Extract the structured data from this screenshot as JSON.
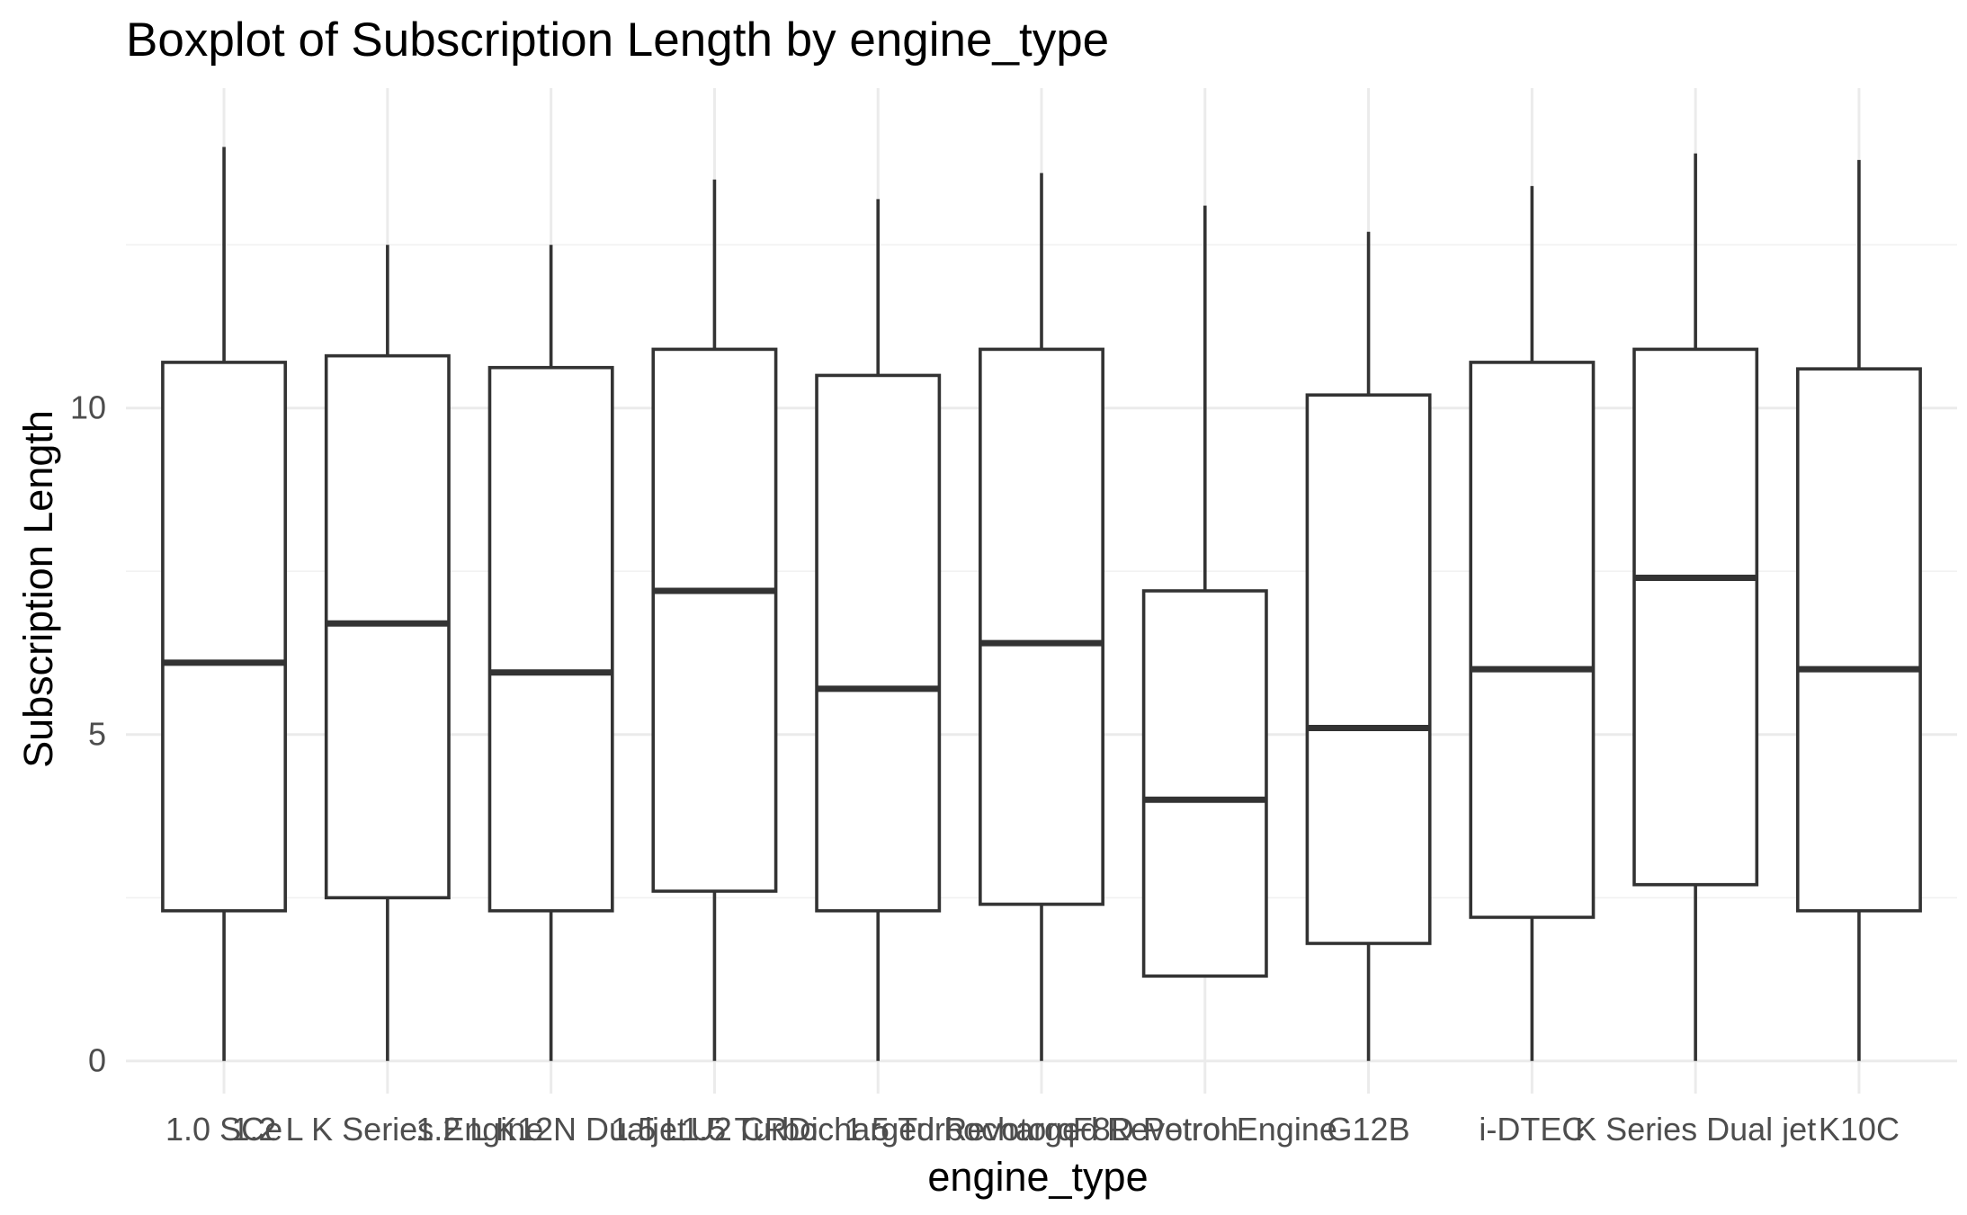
{
  "chart_data": {
    "type": "boxplot",
    "title": "Boxplot of Subscription Length by engine_type",
    "xlabel": "engine_type",
    "ylabel": "Subscription Length",
    "ylim": [
      -0.5,
      14.9
    ],
    "yticks": [
      0,
      5,
      10
    ],
    "grid": true,
    "categories": [
      "1.0 SCe",
      "1.2 L K Series Engine",
      "1.2 L K12N Dualjet",
      "1.5 L U2 CRDi",
      "1.5 Turbocharged Revotorq",
      "1.5 Turbocharged Revotron",
      "F8D Petrol Engine",
      "G12B",
      "i-DTEC",
      "K Series Dual jet",
      "K10C"
    ],
    "boxes": [
      {
        "min": 0.0,
        "q1": 2.3,
        "median": 6.1,
        "q3": 10.7,
        "max": 14.0
      },
      {
        "min": 0.0,
        "q1": 2.5,
        "median": 6.7,
        "q3": 10.8,
        "max": 12.5
      },
      {
        "min": 0.0,
        "q1": 2.3,
        "median": 5.95,
        "q3": 10.62,
        "max": 12.5
      },
      {
        "min": 0.0,
        "q1": 2.6,
        "median": 7.2,
        "q3": 10.9,
        "max": 13.5
      },
      {
        "min": 0.0,
        "q1": 2.3,
        "median": 5.7,
        "q3": 10.5,
        "max": 13.2
      },
      {
        "min": 0.0,
        "q1": 2.4,
        "median": 6.4,
        "q3": 10.9,
        "max": 13.6
      },
      {
        "min": 1.3,
        "q1": 1.3,
        "median": 4.0,
        "q3": 7.2,
        "max": 13.1
      },
      {
        "min": 0.0,
        "q1": 1.8,
        "median": 5.1,
        "q3": 10.2,
        "max": 12.7
      },
      {
        "min": 0.0,
        "q1": 2.2,
        "median": 6.0,
        "q3": 10.7,
        "max": 13.4
      },
      {
        "min": 0.0,
        "q1": 2.7,
        "median": 7.4,
        "q3": 10.9,
        "max": 13.9
      },
      {
        "min": 0.0,
        "q1": 2.3,
        "median": 6.0,
        "q3": 10.6,
        "max": 13.8
      }
    ]
  }
}
